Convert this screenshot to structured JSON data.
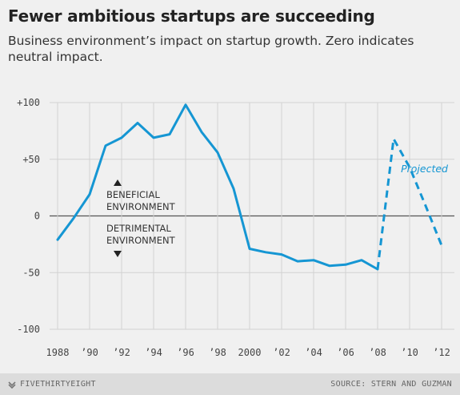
{
  "title": "Fewer ambitious startups are succeeding",
  "subtitle": "Business environment’s impact on startup growth. Zero indicates neutral impact.",
  "footer": {
    "brand": "FIVETHIRTYEIGHT",
    "brand_icon": "fivethirtyeight-logo-icon",
    "source": "SOURCE: STERN AND GUZMAN"
  },
  "chart_data": {
    "type": "line",
    "title": "Fewer ambitious startups are succeeding",
    "subtitle": "Business environment’s impact on startup growth. Zero indicates neutral impact.",
    "xlabel": "",
    "ylabel": "",
    "xlim": [
      1987.5,
      2012.8
    ],
    "ylim": [
      -100,
      100
    ],
    "yticks": [
      -100,
      -50,
      0,
      50,
      100
    ],
    "ytick_labels": [
      "-100",
      "-50",
      "0",
      "+50",
      "+100"
    ],
    "xticks": [
      1988,
      1990,
      1992,
      1994,
      1996,
      1998,
      2000,
      2002,
      2004,
      2006,
      2008,
      2010,
      2012
    ],
    "xtick_labels": [
      "1988",
      "’90",
      "’92",
      "’94",
      "’96",
      "’98",
      "2000",
      "’02",
      "’04",
      "’06",
      "’08",
      "’10",
      "’12"
    ],
    "grid": true,
    "color": "#1596d3",
    "series": [
      {
        "style": "solid",
        "x": [
          1988,
          1989,
          1990,
          1991,
          1992,
          1993,
          1994,
          1995,
          1996,
          1997,
          1998,
          1999,
          2000,
          2001,
          2002,
          2003,
          2004,
          2005,
          2006,
          2007,
          2008
        ],
        "y": [
          -21,
          -2,
          19,
          62,
          69,
          82,
          69,
          72,
          98,
          74,
          56,
          24,
          -29,
          -32,
          -34,
          -40,
          -39,
          -44,
          -43,
          -39,
          -47
        ]
      },
      {
        "name": "Projected",
        "style": "dashed",
        "x": [
          2008,
          2009,
          2010,
          2011,
          2012
        ],
        "y": [
          -47,
          68,
          43,
          9,
          -26
        ]
      }
    ],
    "annotations": {
      "beneficial": [
        "BENEFICIAL",
        "ENVIRONMENT"
      ],
      "detrimental": [
        "DETRIMENTAL",
        "ENVIRONMENT"
      ],
      "up_arrow_icon": "triangle-up-icon",
      "down_arrow_icon": "triangle-down-icon"
    }
  }
}
